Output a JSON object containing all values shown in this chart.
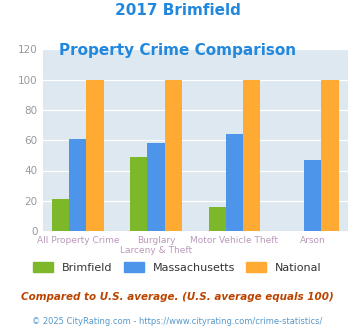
{
  "title_line1": "2017 Brimfield",
  "title_line2": "Property Crime Comparison",
  "brimfield": [
    21,
    49,
    16,
    0
  ],
  "massachusetts": [
    61,
    58,
    64,
    47
  ],
  "national": [
    100,
    100,
    100,
    100
  ],
  "bar_color_brimfield": "#7db82a",
  "bar_color_massachusetts": "#4d94eb",
  "bar_color_national": "#ffaa33",
  "bg_color": "#dde8f0",
  "ylim": [
    0,
    120
  ],
  "yticks": [
    0,
    20,
    40,
    60,
    80,
    100,
    120
  ],
  "ylabel_color": "#999999",
  "title_color": "#2288dd",
  "xlabel_color": "#bb99bb",
  "legend_labels": [
    "Brimfield",
    "Massachusetts",
    "National"
  ],
  "footnote1": "Compared to U.S. average. (U.S. average equals 100)",
  "footnote2": "© 2025 CityRating.com - https://www.cityrating.com/crime-statistics/",
  "footnote1_color": "#bb4400",
  "footnote2_color": "#5599cc",
  "group_labels_row1": [
    "All Property Crime",
    "Burglary",
    "Motor Vehicle Theft",
    "Arson"
  ],
  "group_labels_row2": [
    "",
    "Larceny & Theft",
    "",
    ""
  ]
}
